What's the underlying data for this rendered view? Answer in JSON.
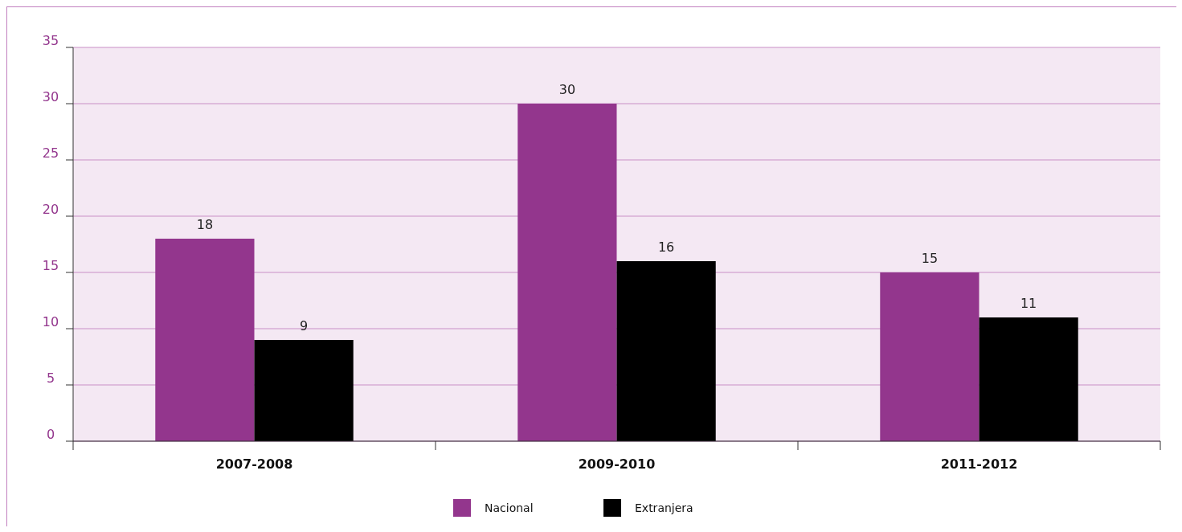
{
  "chart_data": {
    "type": "bar",
    "categories": [
      "2007-2008",
      "2009-2010",
      "2011-2012"
    ],
    "series": [
      {
        "name": "Nacional",
        "color": "#93368d",
        "values": [
          18,
          30,
          15
        ]
      },
      {
        "name": "Extranjera",
        "color": "#000000",
        "values": [
          9,
          16,
          11
        ]
      }
    ],
    "ylim": [
      0,
      35
    ],
    "yticks": [
      0,
      5,
      10,
      15,
      20,
      25,
      30,
      35
    ],
    "grid": "y",
    "legend": "bottom",
    "data_labels": true
  }
}
